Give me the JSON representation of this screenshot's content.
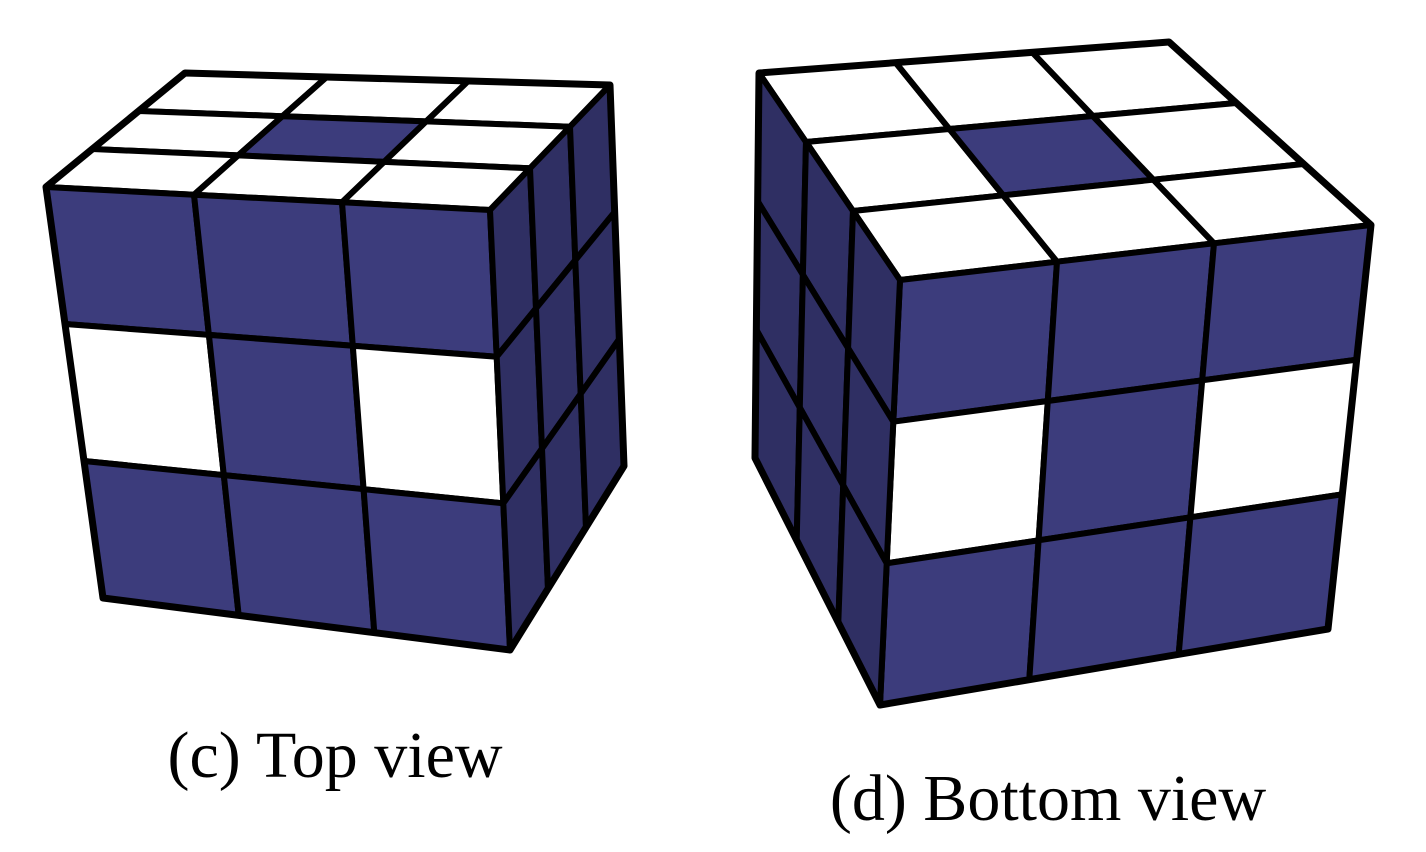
{
  "panels": [
    {
      "caption": "(c) Top view",
      "faces": {
        "top": [
          [
            "white",
            "white",
            "white"
          ],
          [
            "white",
            "blue",
            "white"
          ],
          [
            "white",
            "white",
            "white"
          ]
        ],
        "front": [
          [
            "blue",
            "blue",
            "blue"
          ],
          [
            "white",
            "blue",
            "white"
          ],
          [
            "blue",
            "blue",
            "blue"
          ]
        ],
        "side": [
          [
            "blue",
            "blue",
            "blue"
          ],
          [
            "blue",
            "blue",
            "blue"
          ],
          [
            "blue",
            "blue",
            "blue"
          ]
        ]
      }
    },
    {
      "caption": "(d) Bottom view",
      "faces": {
        "top": [
          [
            "white",
            "white",
            "white"
          ],
          [
            "white",
            "blue",
            "white"
          ],
          [
            "white",
            "white",
            "white"
          ]
        ],
        "front": [
          [
            "blue",
            "blue",
            "blue"
          ],
          [
            "white",
            "blue",
            "white"
          ],
          [
            "blue",
            "blue",
            "blue"
          ]
        ],
        "side": [
          [
            "blue",
            "blue",
            "blue"
          ],
          [
            "blue",
            "blue",
            "blue"
          ],
          [
            "blue",
            "blue",
            "blue"
          ]
        ]
      }
    }
  ],
  "colors": {
    "blue": "#3c3c7c",
    "blue_shaded": "#2f2f63",
    "white": "#ffffff",
    "line": "#000000"
  }
}
